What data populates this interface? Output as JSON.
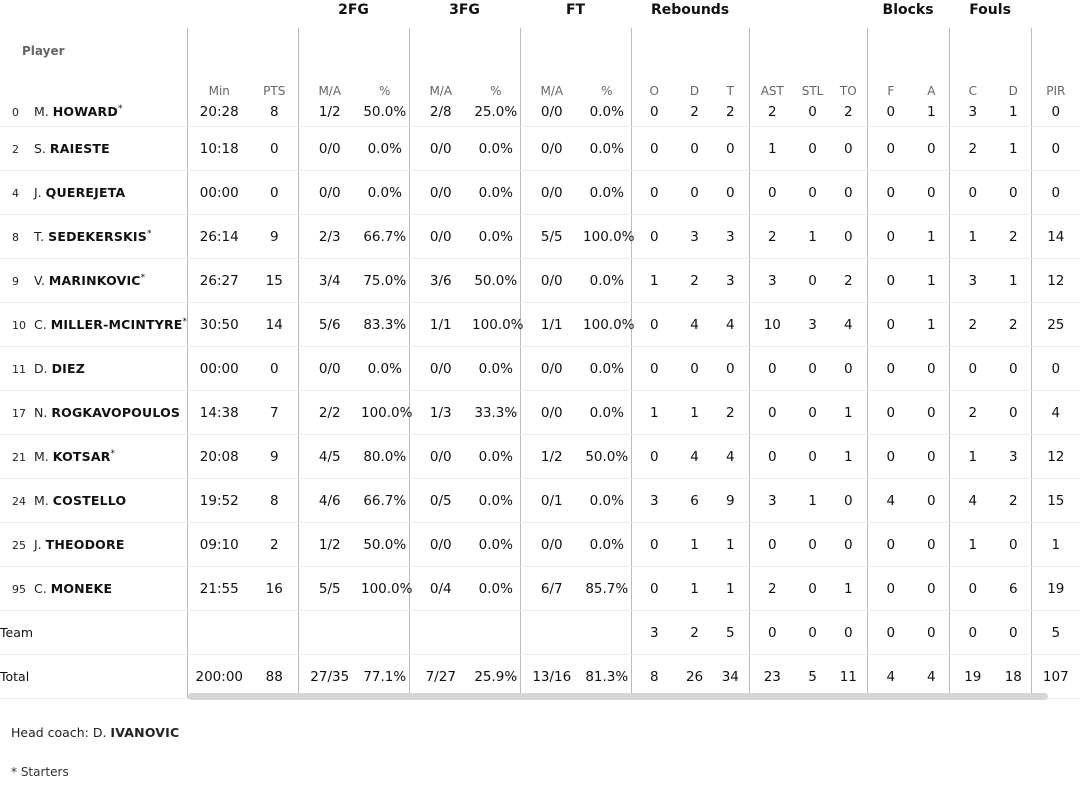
{
  "groups": {
    "fg2": "2FG",
    "fg3": "3FG",
    "ft": "FT",
    "rebounds": "Rebounds",
    "blocks": "Blocks",
    "fouls": "Fouls"
  },
  "columns": {
    "player": "Player",
    "min": "Min",
    "pts": "PTS",
    "fg2_ma": "M/A",
    "fg2_pct": "%",
    "fg3_ma": "M/A",
    "fg3_pct": "%",
    "ft_ma": "M/A",
    "ft_pct": "%",
    "reb_o": "O",
    "reb_d": "D",
    "reb_t": "T",
    "ast": "AST",
    "stl": "STL",
    "to": "TO",
    "blk_f": "F",
    "blk_a": "A",
    "foul_c": "C",
    "foul_d": "D",
    "pir": "PIR"
  },
  "players": [
    {
      "num": "0",
      "initial": "M.",
      "last": "HOWARD",
      "starter": "*",
      "min": "20:28",
      "pts": "8",
      "fg2_ma": "1/2",
      "fg2_pct": "50.0%",
      "fg3_ma": "2/8",
      "fg3_pct": "25.0%",
      "ft_ma": "0/0",
      "ft_pct": "0.0%",
      "reb_o": "0",
      "reb_d": "2",
      "reb_t": "2",
      "ast": "2",
      "stl": "0",
      "to": "2",
      "blk_f": "0",
      "blk_a": "1",
      "foul_c": "3",
      "foul_d": "1",
      "pir": "0"
    },
    {
      "num": "2",
      "initial": "S.",
      "last": "RAIESTE",
      "starter": "",
      "min": "10:18",
      "pts": "0",
      "fg2_ma": "0/0",
      "fg2_pct": "0.0%",
      "fg3_ma": "0/0",
      "fg3_pct": "0.0%",
      "ft_ma": "0/0",
      "ft_pct": "0.0%",
      "reb_o": "0",
      "reb_d": "0",
      "reb_t": "0",
      "ast": "1",
      "stl": "0",
      "to": "0",
      "blk_f": "0",
      "blk_a": "0",
      "foul_c": "2",
      "foul_d": "1",
      "pir": "0"
    },
    {
      "num": "4",
      "initial": "J.",
      "last": "QUEREJETA",
      "starter": "",
      "min": "00:00",
      "pts": "0",
      "fg2_ma": "0/0",
      "fg2_pct": "0.0%",
      "fg3_ma": "0/0",
      "fg3_pct": "0.0%",
      "ft_ma": "0/0",
      "ft_pct": "0.0%",
      "reb_o": "0",
      "reb_d": "0",
      "reb_t": "0",
      "ast": "0",
      "stl": "0",
      "to": "0",
      "blk_f": "0",
      "blk_a": "0",
      "foul_c": "0",
      "foul_d": "0",
      "pir": "0"
    },
    {
      "num": "8",
      "initial": "T.",
      "last": "SEDEKERSKIS",
      "starter": "*",
      "min": "26:14",
      "pts": "9",
      "fg2_ma": "2/3",
      "fg2_pct": "66.7%",
      "fg3_ma": "0/0",
      "fg3_pct": "0.0%",
      "ft_ma": "5/5",
      "ft_pct": "100.0%",
      "reb_o": "0",
      "reb_d": "3",
      "reb_t": "3",
      "ast": "2",
      "stl": "1",
      "to": "0",
      "blk_f": "0",
      "blk_a": "1",
      "foul_c": "1",
      "foul_d": "2",
      "pir": "14"
    },
    {
      "num": "9",
      "initial": "V.",
      "last": "MARINKOVIC",
      "starter": "*",
      "min": "26:27",
      "pts": "15",
      "fg2_ma": "3/4",
      "fg2_pct": "75.0%",
      "fg3_ma": "3/6",
      "fg3_pct": "50.0%",
      "ft_ma": "0/0",
      "ft_pct": "0.0%",
      "reb_o": "1",
      "reb_d": "2",
      "reb_t": "3",
      "ast": "3",
      "stl": "0",
      "to": "2",
      "blk_f": "0",
      "blk_a": "1",
      "foul_c": "3",
      "foul_d": "1",
      "pir": "12"
    },
    {
      "num": "10",
      "initial": "C.",
      "last": "MILLER-MCINTYRE",
      "starter": "*",
      "min": "30:50",
      "pts": "14",
      "fg2_ma": "5/6",
      "fg2_pct": "83.3%",
      "fg3_ma": "1/1",
      "fg3_pct": "100.0%",
      "ft_ma": "1/1",
      "ft_pct": "100.0%",
      "reb_o": "0",
      "reb_d": "4",
      "reb_t": "4",
      "ast": "10",
      "stl": "3",
      "to": "4",
      "blk_f": "0",
      "blk_a": "1",
      "foul_c": "2",
      "foul_d": "2",
      "pir": "25"
    },
    {
      "num": "11",
      "initial": "D.",
      "last": "DIEZ",
      "starter": "",
      "min": "00:00",
      "pts": "0",
      "fg2_ma": "0/0",
      "fg2_pct": "0.0%",
      "fg3_ma": "0/0",
      "fg3_pct": "0.0%",
      "ft_ma": "0/0",
      "ft_pct": "0.0%",
      "reb_o": "0",
      "reb_d": "0",
      "reb_t": "0",
      "ast": "0",
      "stl": "0",
      "to": "0",
      "blk_f": "0",
      "blk_a": "0",
      "foul_c": "0",
      "foul_d": "0",
      "pir": "0"
    },
    {
      "num": "17",
      "initial": "N.",
      "last": "ROGKAVOPOULOS",
      "starter": "",
      "min": "14:38",
      "pts": "7",
      "fg2_ma": "2/2",
      "fg2_pct": "100.0%",
      "fg3_ma": "1/3",
      "fg3_pct": "33.3%",
      "ft_ma": "0/0",
      "ft_pct": "0.0%",
      "reb_o": "1",
      "reb_d": "1",
      "reb_t": "2",
      "ast": "0",
      "stl": "0",
      "to": "1",
      "blk_f": "0",
      "blk_a": "0",
      "foul_c": "2",
      "foul_d": "0",
      "pir": "4"
    },
    {
      "num": "21",
      "initial": "M.",
      "last": "KOTSAR",
      "starter": "*",
      "min": "20:08",
      "pts": "9",
      "fg2_ma": "4/5",
      "fg2_pct": "80.0%",
      "fg3_ma": "0/0",
      "fg3_pct": "0.0%",
      "ft_ma": "1/2",
      "ft_pct": "50.0%",
      "reb_o": "0",
      "reb_d": "4",
      "reb_t": "4",
      "ast": "0",
      "stl": "0",
      "to": "1",
      "blk_f": "0",
      "blk_a": "0",
      "foul_c": "1",
      "foul_d": "3",
      "pir": "12"
    },
    {
      "num": "24",
      "initial": "M.",
      "last": "COSTELLO",
      "starter": "",
      "min": "19:52",
      "pts": "8",
      "fg2_ma": "4/6",
      "fg2_pct": "66.7%",
      "fg3_ma": "0/5",
      "fg3_pct": "0.0%",
      "ft_ma": "0/1",
      "ft_pct": "0.0%",
      "reb_o": "3",
      "reb_d": "6",
      "reb_t": "9",
      "ast": "3",
      "stl": "1",
      "to": "0",
      "blk_f": "4",
      "blk_a": "0",
      "foul_c": "4",
      "foul_d": "2",
      "pir": "15"
    },
    {
      "num": "25",
      "initial": "J.",
      "last": "THEODORE",
      "starter": "",
      "min": "09:10",
      "pts": "2",
      "fg2_ma": "1/2",
      "fg2_pct": "50.0%",
      "fg3_ma": "0/0",
      "fg3_pct": "0.0%",
      "ft_ma": "0/0",
      "ft_pct": "0.0%",
      "reb_o": "0",
      "reb_d": "1",
      "reb_t": "1",
      "ast": "0",
      "stl": "0",
      "to": "0",
      "blk_f": "0",
      "blk_a": "0",
      "foul_c": "1",
      "foul_d": "0",
      "pir": "1"
    },
    {
      "num": "95",
      "initial": "C.",
      "last": "MONEKE",
      "starter": "",
      "min": "21:55",
      "pts": "16",
      "fg2_ma": "5/5",
      "fg2_pct": "100.0%",
      "fg3_ma": "0/4",
      "fg3_pct": "0.0%",
      "ft_ma": "6/7",
      "ft_pct": "85.7%",
      "reb_o": "0",
      "reb_d": "1",
      "reb_t": "1",
      "ast": "2",
      "stl": "0",
      "to": "1",
      "blk_f": "0",
      "blk_a": "0",
      "foul_c": "0",
      "foul_d": "6",
      "pir": "19"
    }
  ],
  "team_row": {
    "label": "Team",
    "min": "",
    "pts": "",
    "fg2_ma": "",
    "fg2_pct": "",
    "fg3_ma": "",
    "fg3_pct": "",
    "ft_ma": "",
    "ft_pct": "",
    "reb_o": "3",
    "reb_d": "2",
    "reb_t": "5",
    "ast": "0",
    "stl": "0",
    "to": "0",
    "blk_f": "0",
    "blk_a": "0",
    "foul_c": "0",
    "foul_d": "0",
    "pir": "5"
  },
  "total_row": {
    "label": "Total",
    "min": "200:00",
    "pts": "88",
    "fg2_ma": "27/35",
    "fg2_pct": "77.1%",
    "fg3_ma": "7/27",
    "fg3_pct": "25.9%",
    "ft_ma": "13/16",
    "ft_pct": "81.3%",
    "reb_o": "8",
    "reb_d": "26",
    "reb_t": "34",
    "ast": "23",
    "stl": "5",
    "to": "11",
    "blk_f": "4",
    "blk_a": "4",
    "foul_c": "19",
    "foul_d": "18",
    "pir": "107"
  },
  "footer": {
    "coach_prefix": "Head coach: D.",
    "coach_name": "IVANOVIC",
    "starters_note": "* Starters"
  }
}
